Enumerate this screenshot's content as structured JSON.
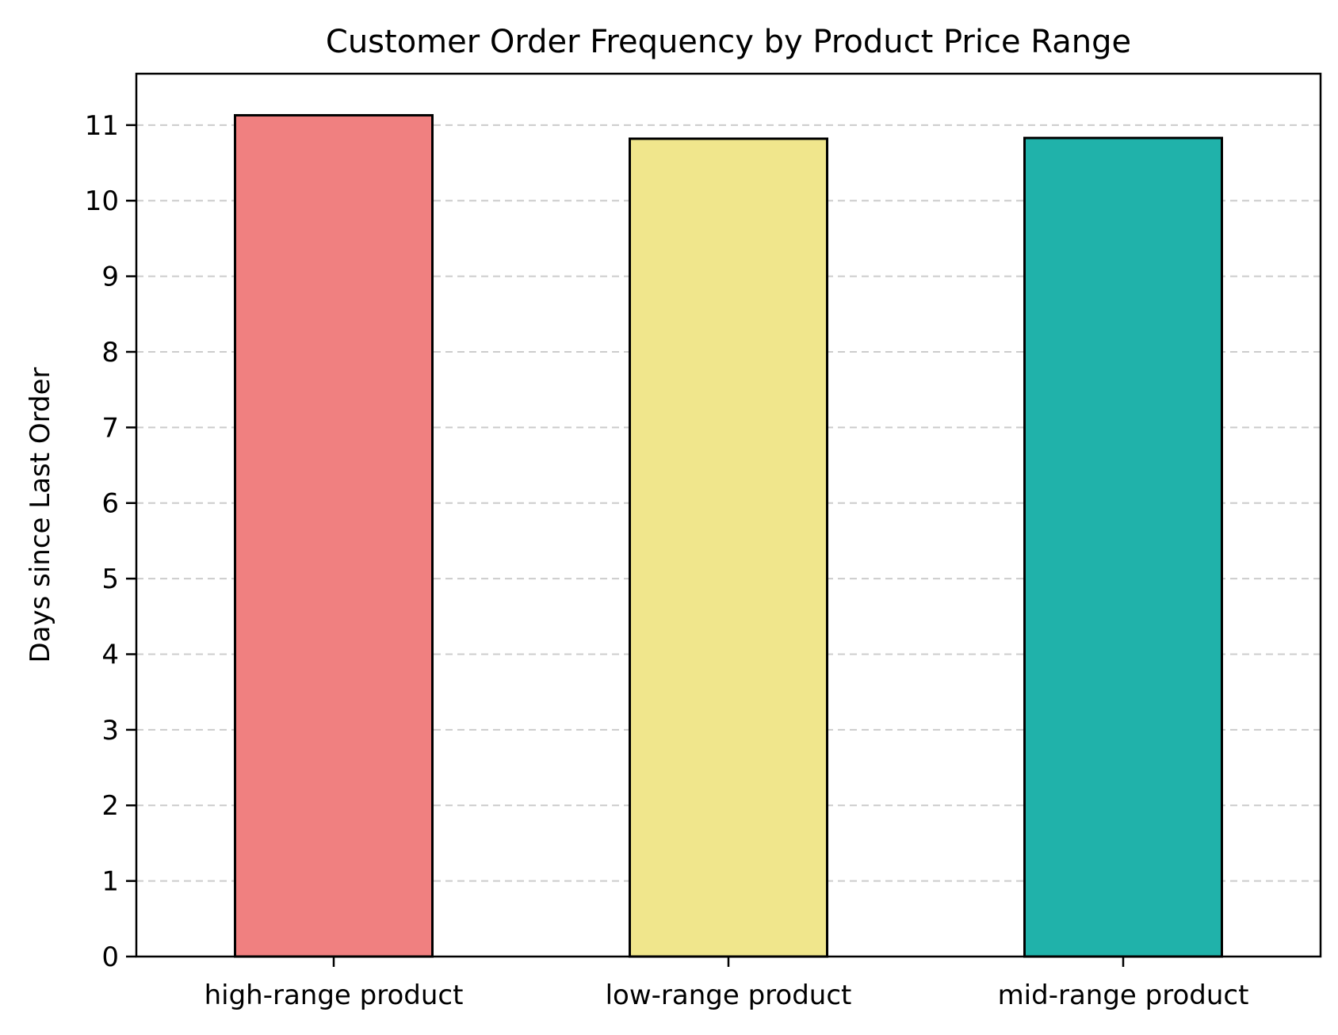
{
  "chart_data": {
    "type": "bar",
    "title": "Customer Order Frequency by Product Price Range",
    "xlabel": "",
    "ylabel": "Days since Last Order",
    "categories": [
      "high-range product",
      "low-range product",
      "mid-range product"
    ],
    "values": [
      11.13,
      10.82,
      10.83
    ],
    "colors": [
      "#f08080",
      "#f0e68c",
      "#20b2aa"
    ],
    "edge_color": "#000000",
    "ylim": [
      0,
      11.68
    ],
    "yticks": [
      0,
      1,
      2,
      3,
      4,
      5,
      6,
      7,
      8,
      9,
      10,
      11
    ],
    "grid": {
      "axis": "y",
      "style": "dashed",
      "color": "#cccccc"
    },
    "legend": "none"
  }
}
